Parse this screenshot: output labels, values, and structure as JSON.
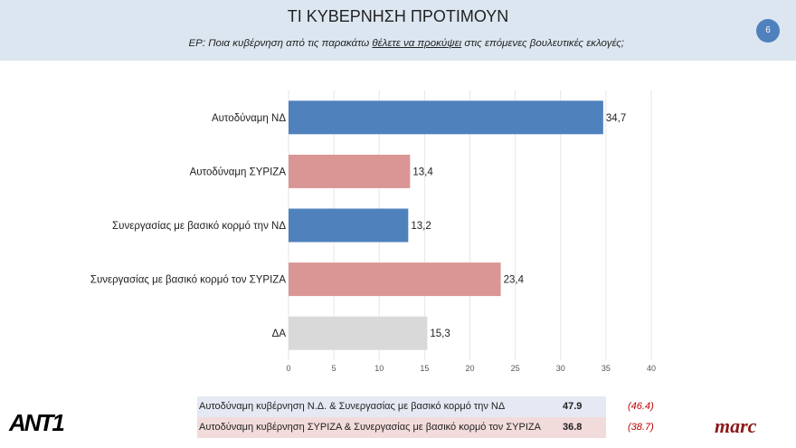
{
  "header": {
    "title": "ΤΙ ΚΥΒΕΡΝΗΣΗ ΠΡΟΤΙΜΟΥΝ",
    "question_prefix": "ΕΡ: Ποια κυβέρνηση από τις παρακάτω ",
    "question_underlined": "θέλετε να προκύψει",
    "question_suffix": " στις επόμενες βουλευτικές εκλογές;",
    "page_number": "6"
  },
  "chart_data": {
    "type": "bar",
    "orientation": "horizontal",
    "categories": [
      "Αυτοδύναμη ΝΔ",
      "Αυτοδύναμη ΣΥΡΙΖΑ",
      "Συνεργασίας με βασικό κορμό την ΝΔ",
      "Συνεργασίας με βασικό κορμό τον ΣΥΡΙΖΑ",
      "ΔΑ"
    ],
    "values": [
      34.7,
      13.4,
      13.2,
      23.4,
      15.3
    ],
    "value_labels": [
      "34,7",
      "13,4",
      "13,2",
      "23,4",
      "15,3"
    ],
    "colors": [
      "#4f81bd",
      "#da9694",
      "#4f81bd",
      "#da9694",
      "#d9d9d9"
    ],
    "xlim": [
      0,
      40
    ],
    "xticks": [
      0,
      5,
      10,
      15,
      20,
      25,
      30,
      35,
      40
    ],
    "grid": true
  },
  "summary": [
    {
      "label": "Αυτοδύναμη κυβέρνηση Ν.Δ. & Συνεργασίας με βασικό κορμό την ΝΔ",
      "value": "47.9",
      "previous": "(46.4)",
      "bg": "#e4e9f3"
    },
    {
      "label": "Αυτοδύναμη κυβέρνηση ΣΥΡΙΖΑ & Συνεργασίας με βασικό κορμό τον ΣΥΡΙΖΑ",
      "value": "36.8",
      "previous": "(38.7)",
      "bg": "#f2dcdb"
    }
  ],
  "logos": {
    "left": "ANT1",
    "right": "marc"
  }
}
